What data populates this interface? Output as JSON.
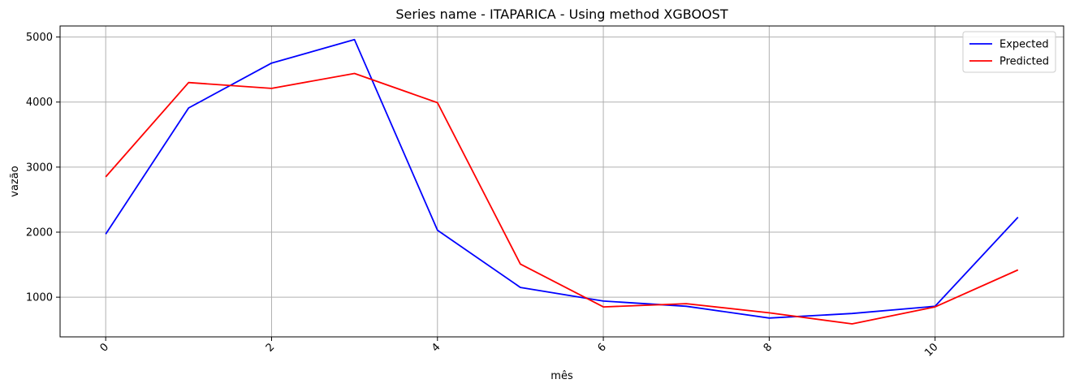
{
  "chart_data": {
    "type": "line",
    "title": "Series name - ITAPARICA - Using method XGBOOST",
    "xlabel": "mês",
    "ylabel": "vazão",
    "x": [
      0,
      1,
      2,
      3,
      4,
      5,
      6,
      7,
      8,
      9,
      10,
      11
    ],
    "xticks": [
      0,
      2,
      4,
      6,
      8,
      10
    ],
    "xtick_labels": [
      "0",
      "2",
      "4",
      "6",
      "8",
      "10"
    ],
    "yticks": [
      1000,
      2000,
      3000,
      4000,
      5000
    ],
    "ytick_labels": [
      "1000",
      "2000",
      "3000",
      "4000",
      "5000"
    ],
    "xlim": [
      -0.55,
      11.55
    ],
    "ylim": [
      390,
      5170
    ],
    "grid": true,
    "legend_position": "top-right",
    "series": [
      {
        "name": "Expected",
        "color": "#0000ff",
        "values": [
          1970,
          3910,
          4600,
          4960,
          2030,
          1150,
          940,
          860,
          680,
          750,
          860,
          2230
        ]
      },
      {
        "name": "Predicted",
        "color": "#ff0000",
        "values": [
          2850,
          4300,
          4210,
          4440,
          3990,
          1510,
          850,
          900,
          760,
          590,
          850,
          1420
        ]
      }
    ]
  }
}
